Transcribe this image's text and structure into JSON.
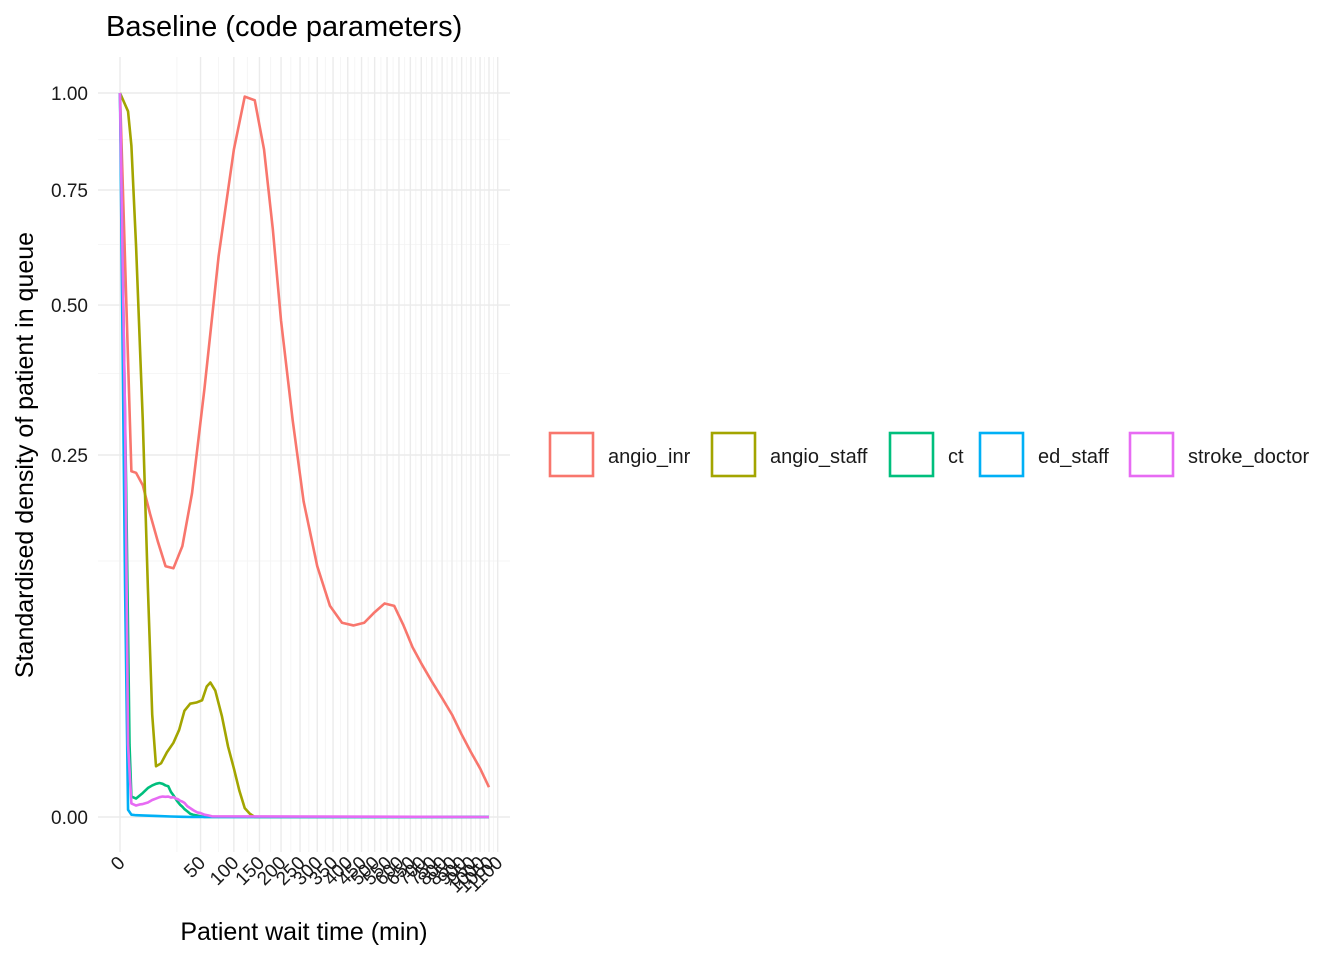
{
  "chart_data": {
    "type": "line",
    "title": "Baseline (code parameters)",
    "xlabel": "Patient wait time (min)",
    "ylabel": "Standardised density of patient in queue",
    "x_scale": "sqrt",
    "y_scale": "sqrt",
    "xlim": [
      0,
      1100
    ],
    "ylim": [
      0,
      1
    ],
    "x_ticks": [
      0,
      50,
      100,
      150,
      200,
      250,
      300,
      350,
      400,
      450,
      500,
      550,
      600,
      650,
      700,
      750,
      800,
      850,
      900,
      950,
      1000,
      1050,
      1100
    ],
    "x_tick_labels": [
      "0",
      "50",
      "100",
      "150",
      "200",
      "250",
      "300",
      "350",
      "400",
      "450",
      "500",
      "550",
      "600",
      "650",
      "700",
      "750",
      "800",
      "850",
      "900",
      "950",
      "1000",
      "1050",
      "1100"
    ],
    "y_ticks": [
      0,
      0.25,
      0.5,
      0.75,
      1
    ],
    "y_tick_labels": [
      "0.00",
      "0.25",
      "0.50",
      "0.75",
      "1.00"
    ],
    "grid": true,
    "legend_position": "right",
    "series": [
      {
        "name": "angio_inr",
        "color": "#F8766D",
        "x": [
          0,
          1,
          2,
          4,
          7,
          11,
          16,
          22,
          30,
          40,
          55,
          75,
          100,
          120,
          140,
          160,
          180,
          200,
          230,
          260,
          300,
          340,
          380,
          420,
          460,
          500,
          540,
          580,
          620,
          660,
          700,
          750,
          800,
          850,
          900,
          950,
          1000,
          1050
        ],
        "y": [
          1,
          0.228,
          0.226,
          0.21,
          0.175,
          0.145,
          0.12,
          0.118,
          0.14,
          0.2,
          0.35,
          0.6,
          0.85,
          0.99,
          0.98,
          0.85,
          0.66,
          0.47,
          0.3,
          0.19,
          0.12,
          0.085,
          0.072,
          0.07,
          0.072,
          0.08,
          0.087,
          0.085,
          0.07,
          0.055,
          0.045,
          0.035,
          0.027,
          0.02,
          0.013,
          0.008,
          0.0045,
          0.0017
        ]
      },
      {
        "name": "angio_staff",
        "color": "#A3A500",
        "x": [
          0,
          0.5,
          1,
          2,
          4,
          6,
          8,
          10,
          13,
          17,
          22,
          27,
          32,
          38,
          45,
          52,
          58,
          63,
          70,
          80,
          90,
          100,
          110,
          120,
          130,
          140,
          150,
          160,
          170,
          180,
          1050
        ],
        "y": [
          1,
          0.95,
          0.86,
          0.62,
          0.3,
          0.1,
          0.02,
          0.0049,
          0.0055,
          0.008,
          0.0105,
          0.0145,
          0.0215,
          0.0245,
          0.025,
          0.026,
          0.0325,
          0.0345,
          0.0305,
          0.0195,
          0.0095,
          0.0045,
          0.0013,
          0.00015,
          2e-05,
          0,
          0,
          0,
          0,
          0,
          0
        ]
      },
      {
        "name": "ct",
        "color": "#00BF7D",
        "x": [
          0,
          0.3,
          0.7,
          1,
          2,
          4,
          6,
          8,
          10,
          12,
          14,
          16,
          18,
          20,
          22,
          25,
          28,
          30,
          32,
          35,
          38,
          42,
          46,
          50,
          55,
          60,
          1050
        ],
        "y": [
          1,
          0.2,
          0.01,
          0.0008,
          0.00065,
          0.0011,
          0.0016,
          0.0019,
          0.0021,
          0.0022,
          0.0021,
          0.0019,
          0.0018,
          0.0012,
          0.0009,
          0.0005,
          0.00028,
          0.0002,
          0.00012,
          6e-05,
          2e-05,
          8e-06,
          4e-06,
          1e-06,
          0,
          0,
          0
        ]
      },
      {
        "name": "ed_staff",
        "color": "#00B0F6",
        "x": [
          0,
          0.2,
          0.5,
          1,
          2,
          5,
          10,
          20,
          30,
          40,
          1050
        ],
        "y": [
          1,
          0.1,
          0.0001,
          1e-05,
          6e-06,
          4e-06,
          2e-06,
          5e-07,
          1e-07,
          0,
          0
        ]
      },
      {
        "name": "stroke_doctor",
        "color": "#E76BF3",
        "x": [
          0,
          0.2,
          0.5,
          1,
          2,
          3,
          4,
          6,
          8,
          10,
          12,
          14,
          16,
          18,
          20,
          22,
          24,
          26,
          28,
          30,
          32,
          35,
          38,
          42,
          46,
          50,
          55,
          60,
          65,
          1050
        ],
        "y": [
          1,
          0.3,
          0.01,
          0.00035,
          0.00025,
          0.0003,
          0.00032,
          0.0004,
          0.00055,
          0.00065,
          0.00075,
          0.0008,
          0.00078,
          0.0008,
          0.00072,
          0.00075,
          0.00065,
          0.0006,
          0.0005,
          0.00045,
          0.00038,
          0.00022,
          0.00015,
          8e-05,
          4e-05,
          3e-05,
          1e-05,
          5e-06,
          1e-06,
          0
        ]
      }
    ]
  }
}
